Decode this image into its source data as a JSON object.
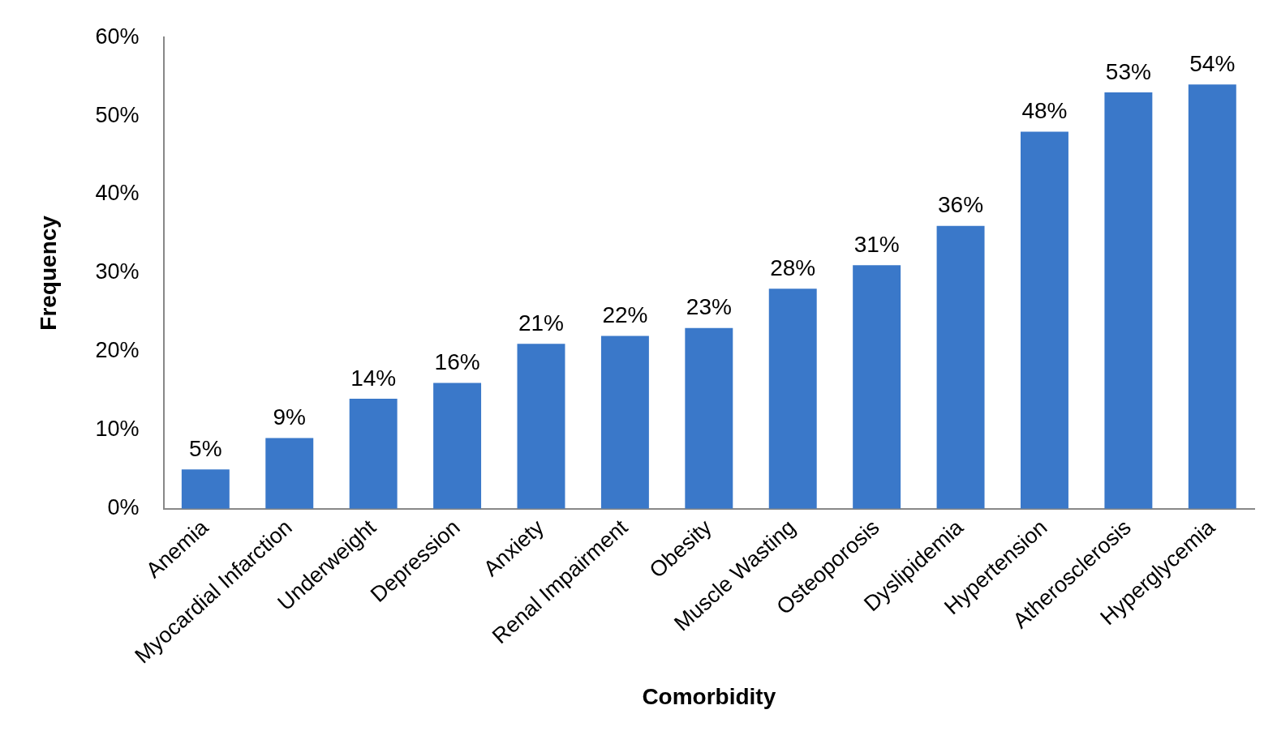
{
  "chart_data": {
    "type": "bar",
    "xlabel": "Comorbidity",
    "ylabel": "Frequency",
    "categories": [
      "Anemia",
      "Myocardial Infarction",
      "Underweight",
      "Depression",
      "Anxiety",
      "Renal Impairment",
      "Obesity",
      "Muscle Wasting",
      "Osteoporosis",
      "Dyslipidemia",
      "Hypertension",
      "Atherosclerosis",
      "Hyperglycemia"
    ],
    "values": [
      5,
      9,
      14,
      16,
      21,
      22,
      23,
      28,
      31,
      36,
      48,
      53,
      54
    ],
    "value_labels": [
      "5%",
      "9%",
      "14%",
      "16%",
      "21%",
      "22%",
      "23%",
      "28%",
      "31%",
      "36%",
      "48%",
      "53%",
      "54%"
    ],
    "color": "#3a78c9",
    "ylim": [
      0,
      60
    ],
    "yticks": [
      {
        "value": 0,
        "label": "0%"
      },
      {
        "value": 10,
        "label": "10%"
      },
      {
        "value": 20,
        "label": "20%"
      },
      {
        "value": 30,
        "label": "30%"
      },
      {
        "value": 40,
        "label": "40%"
      },
      {
        "value": 50,
        "label": "50%"
      },
      {
        "value": 60,
        "label": "60%"
      }
    ]
  }
}
